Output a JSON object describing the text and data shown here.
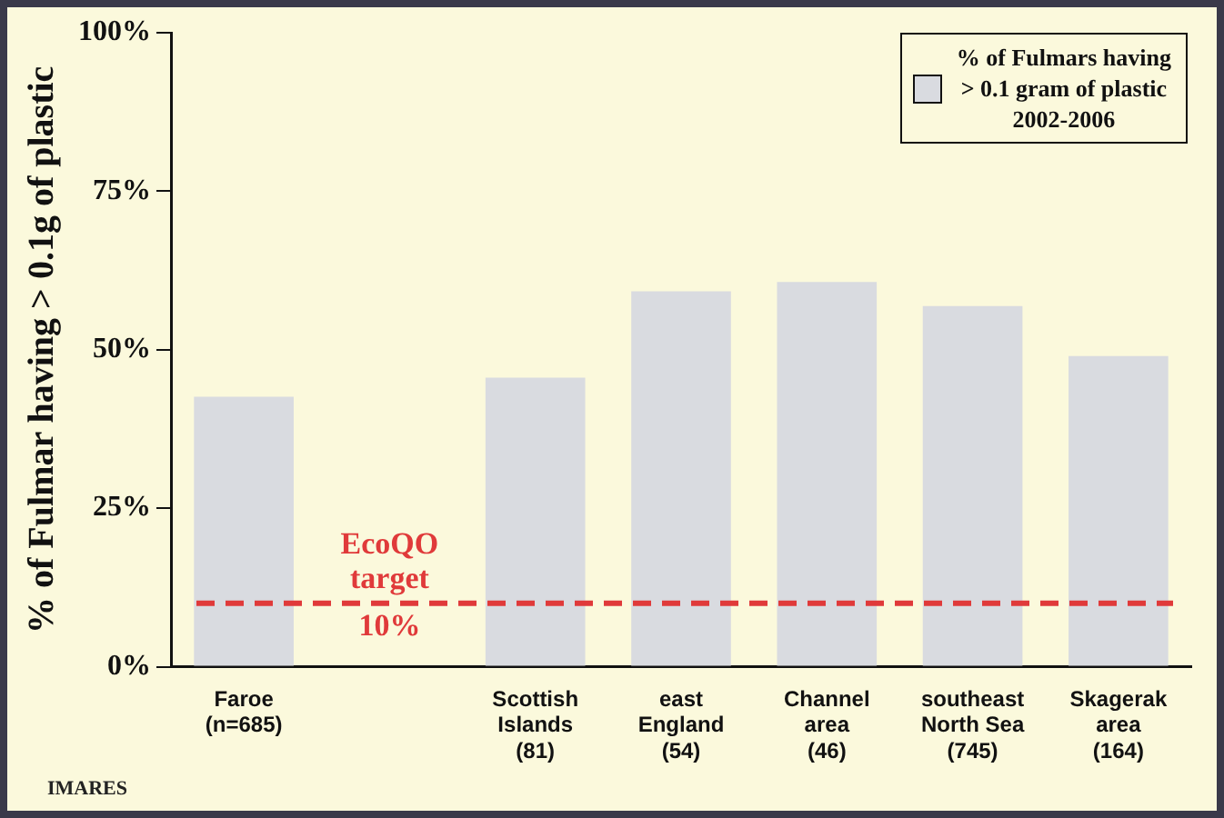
{
  "chart_data": {
    "type": "bar",
    "ylabel": "% of Fulmar having > 0.1g of plastic",
    "categories": [
      "Faroe\n(n=685)",
      null,
      "Scottish\nIslands\n(81)",
      "east\nEngland\n(54)",
      "Channel\narea\n(46)",
      "southeast\nNorth Sea\n(745)",
      "Skagerak\narea\n(164)"
    ],
    "series": [
      {
        "name": "% of Fulmars having\n> 0.1 gram of plastic\n2002-2006",
        "color": "#d9dbe0",
        "values": [
          42.6,
          null,
          45.6,
          59.2,
          60.7,
          56.9,
          49
        ]
      }
    ],
    "ylim": [
      0,
      100
    ],
    "yticks": [
      {
        "value": 0,
        "label": "0%"
      },
      {
        "value": 25,
        "label": "25%"
      },
      {
        "value": 50,
        "label": "50%"
      },
      {
        "value": 75,
        "label": "75%"
      },
      {
        "value": 100,
        "label": "100%"
      }
    ],
    "ref_lines": [
      {
        "axis": "y",
        "value": 10,
        "label": "EcoQO\ntarget\n10%",
        "color": "#e03a3a",
        "line_style": "dashed"
      }
    ],
    "annotations": [
      "IMARES"
    ],
    "grid": false,
    "legend": "top right"
  }
}
